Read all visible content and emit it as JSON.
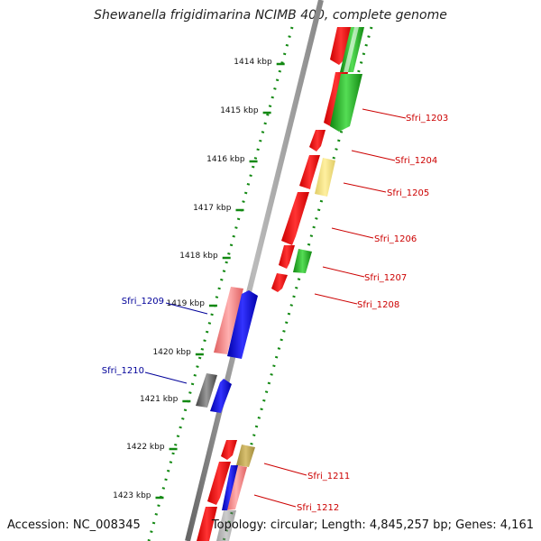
{
  "title": "Shewanella frigidimarina NCIMB 400, complete genome",
  "ticks": [
    "1414 kbp",
    "1415 kbp",
    "1416 kbp",
    "1417 kbp",
    "1418 kbp",
    "1419 kbp",
    "1420 kbp",
    "1421 kbp",
    "1422 kbp",
    "1423 kbp"
  ],
  "forward_genes": [
    "Sfri_1203",
    "Sfri_1204",
    "Sfri_1205",
    "Sfri_1206",
    "Sfri_1207",
    "Sfri_1208",
    "Sfri_1211",
    "Sfri_1212"
  ],
  "reverse_genes": [
    "Sfri_1209",
    "Sfri_1210"
  ],
  "footer": {
    "accession": "Accession: NC_008345",
    "topology": "Topology: circular; Length: 4,845,257 bp; Genes: 4,161"
  },
  "colors": {
    "cds_forward": "#ff0000",
    "cds_reverse": "#0000ff",
    "rna_green": "#22aa22",
    "pale_yellow": "#f0e08a",
    "pink": "#f08080",
    "gray_gene": "#666666",
    "forward_label": "#cc0000",
    "reverse_label": "#000099"
  }
}
